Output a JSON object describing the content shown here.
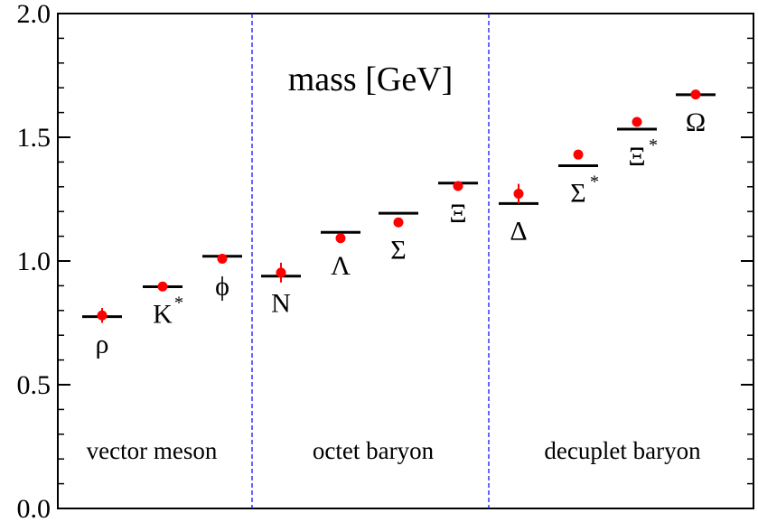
{
  "chart_data": {
    "type": "scatter",
    "title": "mass [GeV]",
    "xlabel": "",
    "ylabel": "",
    "ylim": [
      0.0,
      2.0
    ],
    "yticks": [
      "0.0",
      "0.5",
      "1.0",
      "1.5",
      "2.0"
    ],
    "grid": false,
    "groups": [
      "vector meson",
      "octet baryon",
      "decuplet baryon"
    ],
    "particles": [
      {
        "name": "ρ",
        "sup": "",
        "group": "vector meson",
        "experiment": 0.775,
        "lattice": 0.78,
        "error": 0.03
      },
      {
        "name": "K",
        "sup": "*",
        "group": "vector meson",
        "experiment": 0.896,
        "lattice": 0.897,
        "error": 0.01
      },
      {
        "name": "ϕ",
        "sup": "",
        "group": "vector meson",
        "experiment": 1.019,
        "lattice": 1.009,
        "error": 0.01
      },
      {
        "name": "N",
        "sup": "",
        "group": "octet baryon",
        "experiment": 0.939,
        "lattice": 0.953,
        "error": 0.04
      },
      {
        "name": "Λ",
        "sup": "",
        "group": "octet baryon",
        "experiment": 1.116,
        "lattice": 1.092,
        "error": 0.01
      },
      {
        "name": "Σ",
        "sup": "",
        "group": "octet baryon",
        "experiment": 1.193,
        "lattice": 1.156,
        "error": 0.01
      },
      {
        "name": "Ξ",
        "sup": "",
        "group": "octet baryon",
        "experiment": 1.315,
        "lattice": 1.303,
        "error": 0.01
      },
      {
        "name": "Δ",
        "sup": "",
        "group": "decuplet baryon",
        "experiment": 1.232,
        "lattice": 1.272,
        "error": 0.04
      },
      {
        "name": "Σ",
        "sup": "*",
        "group": "decuplet baryon",
        "experiment": 1.385,
        "lattice": 1.43,
        "error": 0.01
      },
      {
        "name": "Ξ",
        "sup": "*",
        "group": "decuplet baryon",
        "experiment": 1.533,
        "lattice": 1.562,
        "error": 0.01
      },
      {
        "name": "Ω",
        "sup": "",
        "group": "decuplet baryon",
        "experiment": 1.672,
        "lattice": 1.673,
        "error": 0.01
      }
    ],
    "colors": {
      "lattice": "#ff0000",
      "experiment": "#000000",
      "divider": "#0000ff"
    }
  }
}
